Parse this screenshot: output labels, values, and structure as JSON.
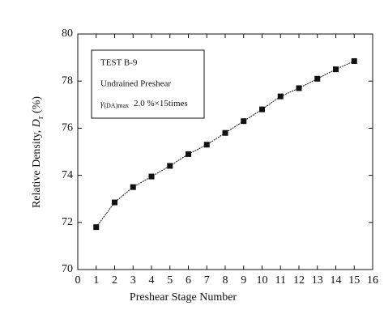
{
  "chart_data": {
    "type": "line",
    "x_label": "Preshear Stage Number",
    "y_label": {
      "prefix": "Relative Density, ",
      "symbol": "D",
      "subscript": "r",
      "suffix": " (%)"
    },
    "annotations": {
      "line1": "TEST B-9",
      "line2": "Undrained Preshear",
      "symbol": "γ",
      "subscript": "(DA)max",
      "text": "2.0 %×15times"
    },
    "x": [
      1,
      2,
      3,
      4,
      5,
      6,
      7,
      8,
      9,
      10,
      11,
      12,
      13,
      14,
      15
    ],
    "series": [
      {
        "color": "#111111",
        "values": [
          71.8,
          72.85,
          73.5,
          73.95,
          74.4,
          74.9,
          75.3,
          75.8,
          76.3,
          76.8,
          77.35,
          77.7,
          78.1,
          78.5,
          78.85
        ]
      }
    ],
    "xlim": [
      0,
      16
    ],
    "xticks": [
      0,
      1,
      2,
      3,
      4,
      5,
      6,
      7,
      8,
      9,
      10,
      11,
      12,
      13,
      14,
      15,
      16
    ],
    "ylim": [
      70,
      80
    ],
    "yticks": [
      70,
      72,
      74,
      76,
      78,
      80
    ]
  }
}
